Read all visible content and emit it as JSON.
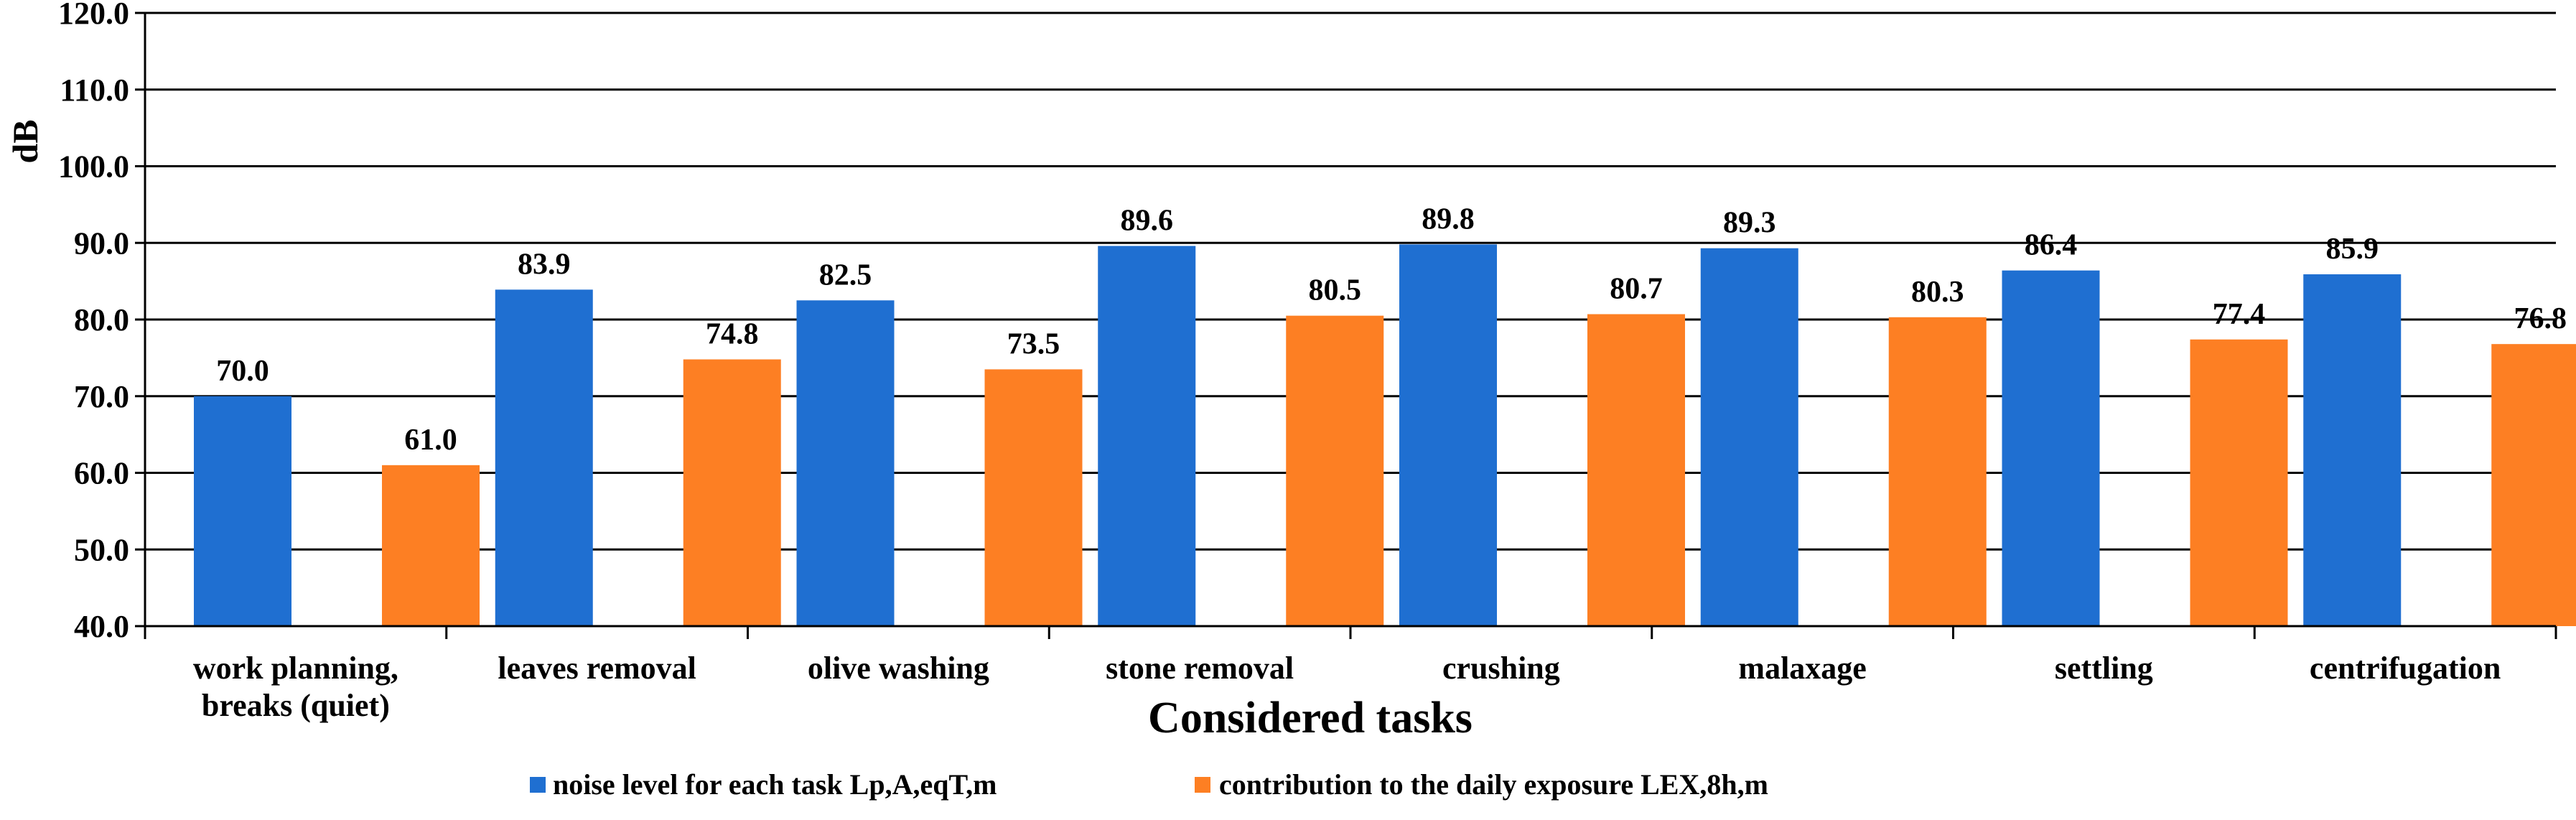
{
  "chart_data": {
    "type": "bar",
    "title": "",
    "xlabel": "Considered tasks",
    "ylabel": "dB",
    "ylim": [
      40,
      120
    ],
    "yticks": [
      "40.0",
      "50.0",
      "60.0",
      "70.0",
      "80.0",
      "90.0",
      "100.0",
      "110.0",
      "120.0"
    ],
    "grid": true,
    "legend_position": "bottom",
    "categories": [
      [
        "work planning,",
        "breaks (quiet)"
      ],
      [
        "leaves removal"
      ],
      [
        "olive washing"
      ],
      [
        "stone removal"
      ],
      [
        "crushing"
      ],
      [
        "malaxage"
      ],
      [
        "settling"
      ],
      [
        "centrifugation"
      ]
    ],
    "series": [
      {
        "name": "noise level for each task Lp,A,eqT,m",
        "color": "#1f6fd1",
        "values": [
          70.0,
          83.9,
          82.5,
          89.6,
          89.8,
          89.3,
          86.4,
          85.9
        ],
        "labels": [
          "70.0",
          "83.9",
          "82.5",
          "89.6",
          "89.8",
          "89.3",
          "86.4",
          "85.9"
        ]
      },
      {
        "name": "contribution  to the daily exposure LEX,8h,m",
        "color": "#fd7f23",
        "values": [
          61.0,
          74.8,
          73.5,
          80.5,
          80.7,
          80.3,
          77.4,
          76.8
        ],
        "labels": [
          "61.0",
          "74.8",
          "73.5",
          "80.5",
          "80.7",
          "80.3",
          "77.4",
          "76.8"
        ]
      }
    ]
  }
}
